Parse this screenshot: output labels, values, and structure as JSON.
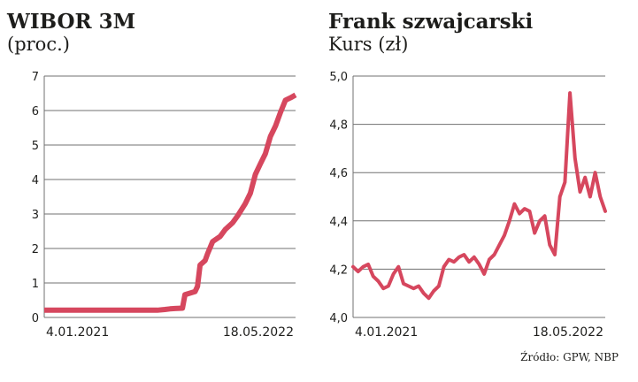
{
  "source_note": "Źródło: GPW, NBP",
  "colors": {
    "series": "#d6475e",
    "grid": "#707070",
    "text": "#1d1d1b"
  },
  "chart_data": [
    {
      "type": "line",
      "title": "WIBOR 3M",
      "subtitle": "(proc.)",
      "ylim": [
        0,
        7
      ],
      "yticks": [
        "0",
        "1",
        "2",
        "3",
        "4",
        "5",
        "6",
        "7"
      ],
      "xticks": [
        "4.01.2021",
        "18.05.2022"
      ],
      "grid": true,
      "series": [
        {
          "x": [
            0,
            0.1,
            0.2,
            0.3,
            0.4,
            0.45,
            0.48,
            0.5,
            0.52,
            0.55,
            0.56,
            0.6,
            0.61,
            0.62,
            0.64,
            0.65,
            0.67,
            0.7,
            0.72,
            0.75,
            0.77,
            0.8,
            0.82,
            0.84,
            0.86,
            0.88,
            0.9,
            0.92,
            0.94,
            0.96,
            0.98,
            1.0
          ],
          "y": [
            0.21,
            0.21,
            0.21,
            0.21,
            0.21,
            0.21,
            0.23,
            0.25,
            0.26,
            0.27,
            0.66,
            0.75,
            0.9,
            1.52,
            1.65,
            1.85,
            2.2,
            2.35,
            2.55,
            2.75,
            2.95,
            3.3,
            3.6,
            4.15,
            4.45,
            4.75,
            5.25,
            5.55,
            5.95,
            6.3,
            6.37,
            6.45
          ]
        }
      ]
    },
    {
      "type": "line",
      "title": "Frank szwajcarski",
      "subtitle": "Kurs (zł)",
      "ylim": [
        4.0,
        5.0
      ],
      "yticks": [
        "4,0",
        "4,2",
        "4,4",
        "4,6",
        "4,8",
        "5,0"
      ],
      "xticks": [
        "4.01.2021",
        "18.05.2022"
      ],
      "grid": true,
      "series": [
        {
          "x": [
            0,
            0.02,
            0.04,
            0.06,
            0.08,
            0.1,
            0.12,
            0.14,
            0.16,
            0.18,
            0.2,
            0.22,
            0.24,
            0.26,
            0.28,
            0.3,
            0.32,
            0.34,
            0.36,
            0.38,
            0.4,
            0.42,
            0.44,
            0.46,
            0.48,
            0.5,
            0.52,
            0.54,
            0.56,
            0.58,
            0.6,
            0.62,
            0.64,
            0.66,
            0.68,
            0.7,
            0.72,
            0.74,
            0.76,
            0.78,
            0.8,
            0.82,
            0.84,
            0.86,
            0.88,
            0.9,
            0.92,
            0.94,
            0.96,
            0.98,
            1.0
          ],
          "y": [
            4.21,
            4.19,
            4.21,
            4.22,
            4.17,
            4.15,
            4.12,
            4.13,
            4.18,
            4.21,
            4.14,
            4.13,
            4.12,
            4.13,
            4.1,
            4.08,
            4.11,
            4.13,
            4.21,
            4.24,
            4.23,
            4.25,
            4.26,
            4.23,
            4.25,
            4.22,
            4.18,
            4.24,
            4.26,
            4.3,
            4.34,
            4.4,
            4.47,
            4.43,
            4.45,
            4.44,
            4.35,
            4.4,
            4.42,
            4.3,
            4.26,
            4.5,
            4.56,
            4.93,
            4.66,
            4.52,
            4.58,
            4.5,
            4.6,
            4.5,
            4.44
          ]
        }
      ]
    }
  ]
}
